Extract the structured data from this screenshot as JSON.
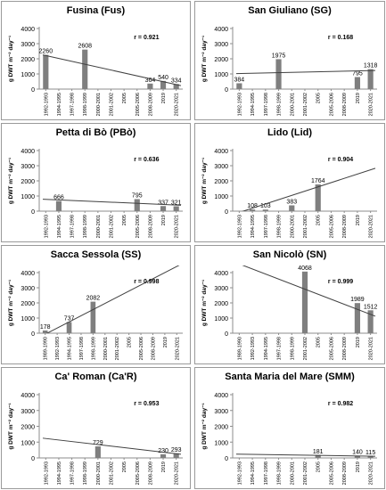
{
  "colors": {
    "bar": "#7f7f7f",
    "trend": "#404040",
    "axis": "#8c8c8c",
    "border": "#9a9a9a"
  },
  "chart_data": [
    {
      "type": "bar",
      "title": "Fusina (Fus)",
      "ylabel": "g DWT m⁻² day⁻¹",
      "ylim": [
        0,
        4000
      ],
      "yticks": [
        "0",
        "1000",
        "2000",
        "3000",
        "4000"
      ],
      "categories": [
        "1992-1993",
        "1994-1995",
        "1997-1998",
        "1998-1999",
        "2000-2001",
        "2001-2002",
        "2005",
        "2005-2006",
        "2008-2009",
        "2019",
        "2020-2021"
      ],
      "values": [
        2260,
        null,
        null,
        2608,
        null,
        null,
        null,
        null,
        364,
        540,
        334
      ],
      "data_labels": [
        "2260",
        "",
        "",
        "2608",
        "",
        "",
        "",
        "",
        "364",
        "540",
        "334"
      ],
      "trend": [
        2260,
        229
      ],
      "annotation": "r = 0.921",
      "grid": false
    },
    {
      "type": "bar",
      "title": "San Giuliano (SG)",
      "ylabel": "g DWT m⁻² day⁻¹",
      "ylim": [
        0,
        4000
      ],
      "yticks": [
        "0",
        "1000",
        "2000",
        "3000",
        "4000"
      ],
      "categories": [
        "1992-1993",
        "1994-1995",
        "1997-1998",
        "1998-1999",
        "2000-2001",
        "2001-2002",
        "2005",
        "2005-2006",
        "2008-2009",
        "2019",
        "2020-2021"
      ],
      "values": [
        384,
        null,
        null,
        1975,
        null,
        null,
        null,
        null,
        null,
        795,
        1318
      ],
      "data_labels": [
        "384",
        "",
        "",
        "1975",
        "",
        "",
        "",
        "",
        "",
        "795",
        "1318"
      ],
      "trend": [
        1020,
        1230
      ],
      "annotation": "r = 0.168",
      "grid": false
    },
    {
      "type": "bar",
      "title": "Petta di Bò (PBò)",
      "ylabel": "g DWT m⁻² day⁻¹",
      "ylim": [
        0,
        4000
      ],
      "yticks": [
        "0",
        "1000",
        "2000",
        "3000",
        "4000"
      ],
      "categories": [
        "1992-1993",
        "1994-1995",
        "1997-1998",
        "1998-1999",
        "2000-2001",
        "2001-2002",
        "2005",
        "2005-2006",
        "2008-2009",
        "2019",
        "2020-2021"
      ],
      "values": [
        null,
        666,
        null,
        null,
        null,
        null,
        null,
        795,
        null,
        337,
        321
      ],
      "data_labels": [
        "",
        "666",
        "",
        "",
        "",
        "",
        "",
        "795",
        "",
        "337",
        "321"
      ],
      "trend": [
        790,
        390
      ],
      "annotation": "r = 0.636",
      "grid": false
    },
    {
      "type": "bar",
      "title": "Lido (Lid)",
      "ylabel": "g DWT m⁻² day⁻¹",
      "ylim": [
        0,
        4000
      ],
      "yticks": [
        "0",
        "1000",
        "2000",
        "3000",
        "4000"
      ],
      "categories": [
        "1992-1993",
        "1994-1995",
        "1997-1998",
        "1998-1999",
        "2000-2001",
        "2001-2002",
        "2005",
        "2005-2006",
        "2008-2009",
        "2019",
        "2020-2021"
      ],
      "values": [
        null,
        108,
        103,
        null,
        383,
        null,
        1764,
        null,
        null,
        null,
        null
      ],
      "data_labels": [
        "",
        "108",
        "103",
        "",
        "383",
        "",
        "1764",
        "",
        "",
        "",
        ""
      ],
      "trend": [
        -150,
        2830
      ],
      "annotation": "r = 0.904",
      "grid": false
    },
    {
      "type": "bar",
      "title": "Sacca Sessola (SS)",
      "ylabel": "g DWT m⁻² day⁻¹",
      "ylim": [
        0,
        4000
      ],
      "yticks": [
        "0",
        "1000",
        "2000",
        "3000",
        "4000"
      ],
      "categories": [
        "1989-1990",
        "1992-1993",
        "1994-1995",
        "1997-1998",
        "1998-1999",
        "2000-2001",
        "2001-2002",
        "2005",
        "2005-2006",
        "2008-2009",
        "2019",
        "2020-2021"
      ],
      "values": [
        178,
        null,
        737,
        null,
        2082,
        null,
        null,
        null,
        null,
        null,
        null,
        null
      ],
      "data_labels": [
        "178",
        "",
        "737",
        "",
        "2082",
        "",
        "",
        "",
        "",
        "",
        "",
        ""
      ],
      "trend": [
        -150,
        4550
      ],
      "annotation": "r = 0.998",
      "grid": false
    },
    {
      "type": "bar",
      "title": "San Nicolò (SN)",
      "ylabel": "g DWT m⁻² day⁻¹",
      "ylim": [
        0,
        4000
      ],
      "yticks": [
        "0",
        "1000",
        "2000",
        "3000",
        "4000"
      ],
      "categories": [
        "1989-1990",
        "1992-1993",
        "1994-1995",
        "1997-1998",
        "1998-1999",
        "2001-2002",
        "2005",
        "2005-2006",
        "2008-2009",
        "2019",
        "2020-2021"
      ],
      "values": [
        null,
        null,
        null,
        null,
        null,
        4068,
        null,
        null,
        null,
        1989,
        1512
      ],
      "data_labels": [
        "",
        "",
        "",
        "",
        "",
        "4068",
        "",
        "",
        "",
        "1989",
        "1512"
      ],
      "trend": [
        4650,
        1120
      ],
      "annotation": "r = 0.999",
      "grid": false
    },
    {
      "type": "bar",
      "title": "Ca' Roman (Ca'R)",
      "ylabel": "g DWT m⁻² day⁻¹",
      "ylim": [
        0,
        4000
      ],
      "yticks": [
        "0",
        "1000",
        "2000",
        "3000",
        "4000"
      ],
      "categories": [
        "1992-1993",
        "1994-1995",
        "1997-1998",
        "1998-1999",
        "2000-2001",
        "2001-2002",
        "2005",
        "2005-2006",
        "2008-2009",
        "2019",
        "2020-2021"
      ],
      "values": [
        null,
        null,
        null,
        null,
        729,
        null,
        null,
        null,
        null,
        230,
        293
      ],
      "data_labels": [
        "",
        "",
        "",
        "",
        "729",
        "",
        "",
        "",
        "",
        "230",
        "293"
      ],
      "trend": [
        1250,
        230
      ],
      "annotation": "r = 0.953",
      "grid": false
    },
    {
      "type": "bar",
      "title": "Santa Maria del Mare (SMM)",
      "ylabel": "g DWT m⁻² day⁻¹",
      "ylim": [
        0,
        4000
      ],
      "yticks": [
        "0",
        "1000",
        "2000",
        "3000",
        "4000"
      ],
      "categories": [
        "1992-1993",
        "1994-1995",
        "1997-1998",
        "1998-1999",
        "2000-2001",
        "2001-2002",
        "2005",
        "2005-2006",
        "2008-2009",
        "2019",
        "2020-2021"
      ],
      "values": [
        null,
        null,
        null,
        null,
        null,
        null,
        181,
        null,
        null,
        140,
        115
      ],
      "data_labels": [
        "",
        "",
        "",
        "",
        "",
        "",
        "181",
        "",
        "",
        "140",
        "115"
      ],
      "trend": [
        240,
        105
      ],
      "annotation": "r = 0.982",
      "grid": false
    }
  ]
}
